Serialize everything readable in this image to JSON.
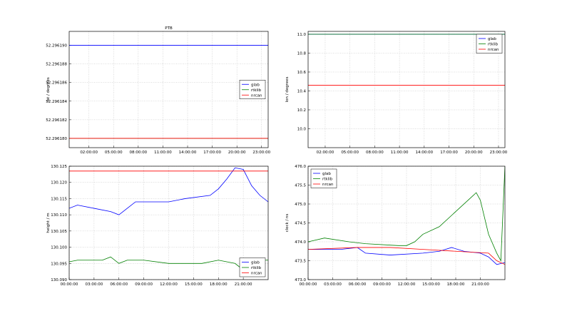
{
  "chart_data": [
    {
      "type": "line",
      "title": "PTB",
      "ylabel": "lat / degrees",
      "grid": true,
      "legend": "center right",
      "xlim": [
        -0.4,
        23.8
      ],
      "ylim": [
        52.296179,
        52.2961915
      ],
      "xticks": [
        {
          "value": 2,
          "label": "02:00:00"
        },
        {
          "value": 5,
          "label": "05:00:00"
        },
        {
          "value": 8,
          "label": "08:00:00"
        },
        {
          "value": 11,
          "label": "11:00:00"
        },
        {
          "value": 14,
          "label": "14:00:00"
        },
        {
          "value": 17,
          "label": "17:00:00"
        },
        {
          "value": 20,
          "label": "20:00:00"
        },
        {
          "value": 23,
          "label": "23:00:00"
        }
      ],
      "yticks": [
        {
          "value": 52.29618,
          "label": "52.296180"
        },
        {
          "value": 52.296182,
          "label": "52.296182"
        },
        {
          "value": 52.296184,
          "label": "52.296184"
        },
        {
          "value": 52.296186,
          "label": "52.296186"
        },
        {
          "value": 52.296188,
          "label": "52.296188"
        },
        {
          "value": 52.29619,
          "label": "52.296190"
        }
      ],
      "series": [
        {
          "name": "glab",
          "color": "#0000ff",
          "x": [
            -0.4,
            23.8
          ],
          "values": [
            52.29619,
            52.29619
          ]
        },
        {
          "name": "rtklib",
          "color": "#008000",
          "x": [
            -0.4,
            23.8
          ],
          "values": [
            52.29618,
            52.29618
          ]
        },
        {
          "name": "nrcan",
          "color": "#ff0000",
          "x": [
            -0.4,
            23.8
          ],
          "values": [
            52.29618,
            52.29618
          ]
        }
      ]
    },
    {
      "type": "line",
      "ylabel": "lon / degrees",
      "grid": true,
      "legend": "upper right",
      "xlim": [
        -0.07,
        23.78
      ],
      "ylim": [
        9.8,
        11.03
      ],
      "xticks": [
        {
          "value": 2,
          "label": "02:00:00"
        },
        {
          "value": 5,
          "label": "05:00:00"
        },
        {
          "value": 8,
          "label": "08:00:00"
        },
        {
          "value": 11,
          "label": "11:00:00"
        },
        {
          "value": 14,
          "label": "14:00:00"
        },
        {
          "value": 17,
          "label": "17:00:00"
        },
        {
          "value": 20,
          "label": "20:00:00"
        },
        {
          "value": 23,
          "label": "23:00:00"
        }
      ],
      "yticks": [
        {
          "value": 10,
          "label": "10.0"
        },
        10.2,
        10.4,
        10.6,
        10.8,
        {
          "value": 11,
          "label": "11.0"
        }
      ],
      "series": [
        {
          "name": "glab",
          "color": "#0000ff",
          "x": [
            -0.07,
            23.78
          ],
          "values": [
            11.0,
            11.0
          ]
        },
        {
          "name": "rtklib",
          "color": "#008000",
          "x": [
            -0.07,
            23.78
          ],
          "values": [
            11.0,
            11.0
          ]
        },
        {
          "name": "nrcan",
          "color": "#ff0000",
          "x": [
            -0.07,
            23.78
          ],
          "values": [
            10.46,
            10.46
          ]
        }
      ]
    },
    {
      "type": "line",
      "ylabel": "height / m",
      "grid": true,
      "legend": "lower right",
      "xlim": [
        0,
        24
      ],
      "ylim": [
        130.09,
        130.125
      ],
      "xticks": [
        {
          "value": 0,
          "label": "00:00:00"
        },
        {
          "value": 3,
          "label": "03:00:00"
        },
        {
          "value": 6,
          "label": "06:00:00"
        },
        {
          "value": 9,
          "label": "09:00:00"
        },
        {
          "value": 12,
          "label": "12:00:00"
        },
        {
          "value": 15,
          "label": "15:00:00"
        },
        {
          "value": 18,
          "label": "18:00:00"
        },
        {
          "value": 21,
          "label": "21:00:00"
        }
      ],
      "yticks": [
        {
          "value": 130.09,
          "label": "130.090"
        },
        130.095,
        {
          "value": 130.1,
          "label": "130.100"
        },
        130.105,
        {
          "value": 130.11,
          "label": "130.110"
        },
        130.115,
        {
          "value": 130.12,
          "label": "130.120"
        },
        130.125
      ],
      "series": [
        {
          "name": "glab",
          "color": "#0000ff",
          "x": [
            0,
            1,
            3,
            5,
            6,
            7,
            8,
            12,
            14,
            17,
            18,
            19,
            20,
            21,
            22,
            23,
            24
          ],
          "values": [
            130.112,
            130.113,
            130.112,
            130.111,
            130.11,
            130.112,
            130.114,
            130.114,
            130.115,
            130.116,
            130.118,
            130.121,
            130.1245,
            130.124,
            130.119,
            130.116,
            130.114
          ]
        },
        {
          "name": "rtklib",
          "color": "#008000",
          "x": [
            0,
            1,
            4,
            5,
            6,
            7,
            9,
            12,
            16,
            18,
            20,
            21,
            22,
            23,
            24
          ],
          "values": [
            130.0955,
            130.096,
            130.096,
            130.097,
            130.095,
            130.096,
            130.096,
            130.095,
            130.095,
            130.096,
            130.095,
            130.093,
            130.094,
            130.096,
            130.096
          ]
        },
        {
          "name": "nrcan",
          "color": "#ff0000",
          "x": [
            0,
            24
          ],
          "values": [
            130.1235,
            130.1235
          ]
        }
      ]
    },
    {
      "type": "line",
      "ylabel": "clock / ns",
      "grid": true,
      "legend": "upper left",
      "xlim": [
        0,
        24
      ],
      "ylim": [
        473.0,
        476.0
      ],
      "xticks": [
        {
          "value": 0,
          "label": "00:00:00"
        },
        {
          "value": 3,
          "label": "03:00:00"
        },
        {
          "value": 6,
          "label": "06:00:00"
        },
        {
          "value": 9,
          "label": "09:00:00"
        },
        {
          "value": 12,
          "label": "12:00:00"
        },
        {
          "value": 15,
          "label": "15:00:00"
        },
        {
          "value": 18,
          "label": "18:00:00"
        },
        {
          "value": 21,
          "label": "21:00:00"
        }
      ],
      "yticks": [
        {
          "value": 473,
          "label": "473.0"
        },
        473.5,
        {
          "value": 474,
          "label": "474.0"
        },
        474.5,
        {
          "value": 475,
          "label": "475.0"
        },
        475.5,
        {
          "value": 476,
          "label": "476.0"
        }
      ],
      "series": [
        {
          "name": "glab",
          "color": "#0000ff",
          "x": [
            0,
            4,
            6,
            7,
            10,
            14,
            16,
            17.5,
            19,
            21,
            22,
            23,
            24
          ],
          "values": [
            473.8,
            473.8,
            473.85,
            473.7,
            473.65,
            473.7,
            473.75,
            473.85,
            473.75,
            473.7,
            473.6,
            473.4,
            473.45
          ]
        },
        {
          "name": "rtklib",
          "color": "#008000",
          "x": [
            0,
            2,
            5,
            7,
            11,
            12,
            13,
            14,
            16,
            18,
            20,
            20.5,
            21,
            22,
            23,
            23.5,
            24
          ],
          "values": [
            474.0,
            474.1,
            474.0,
            473.95,
            473.9,
            473.9,
            474.0,
            474.2,
            474.4,
            474.8,
            475.2,
            475.3,
            475.1,
            474.2,
            473.7,
            473.5,
            476.0
          ]
        },
        {
          "name": "nrcan",
          "color": "#ff0000",
          "x": [
            0,
            6,
            10,
            14,
            18,
            22,
            23,
            24
          ],
          "values": [
            473.8,
            473.85,
            473.85,
            473.8,
            473.75,
            473.7,
            473.5,
            473.4
          ]
        }
      ]
    }
  ]
}
